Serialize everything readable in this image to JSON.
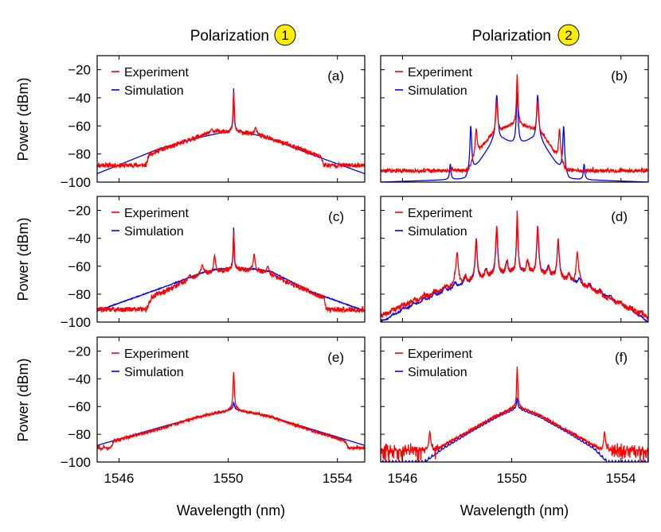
{
  "figure": {
    "column_titles": [
      {
        "text": "Polarization",
        "marker": "1",
        "marker_color": "#ffee00"
      },
      {
        "text": "Polarization",
        "marker": "2",
        "marker_color": "#ffee00"
      }
    ],
    "ylabel": "Power (dBm)",
    "xlabel": "Wavelength (nm)"
  },
  "colors": {
    "experiment": "#ff0000",
    "simulation": "#0000ff",
    "axes": "#000000"
  },
  "chart_data": [
    {
      "type": "line",
      "panel": "(a)",
      "column": 1,
      "row": 1,
      "xlim": [
        1545.2,
        1555.0
      ],
      "ylim": [
        -100,
        -10
      ],
      "xticks": [
        1546,
        1550,
        1554
      ],
      "yticks": [
        -20,
        -40,
        -60,
        -80,
        -100
      ],
      "legend": [
        "Experiment",
        "Simulation"
      ],
      "legend_position": "top-left",
      "series": [
        {
          "name": "Experiment",
          "floor": -95,
          "floor_noise": 5,
          "noise": 1.6,
          "seed": 11,
          "points": [
            [
              1545.2,
              -88
            ],
            [
              1547.0,
              -88
            ],
            [
              1547.1,
              -80
            ],
            [
              1548,
              -74
            ],
            [
              1549,
              -67
            ],
            [
              1549.6,
              -64
            ],
            [
              1550.2,
              -64
            ],
            [
              1551,
              -66
            ],
            [
              1552,
              -72
            ],
            [
              1553,
              -79
            ],
            [
              1553.4,
              -82
            ],
            [
              1553.5,
              -88
            ],
            [
              1555,
              -88
            ]
          ],
          "peaks": [
            [
              1550.2,
              -35,
              0.025
            ],
            [
              1549.4,
              -62,
              0.04
            ],
            [
              1551.0,
              -61,
              0.04
            ]
          ]
        },
        {
          "name": "Simulation",
          "floor": -200,
          "floor_noise": 0,
          "noise": 0,
          "seed": 1,
          "points": [
            [
              1545.2,
              -94
            ],
            [
              1547.5,
              -76
            ],
            [
              1549,
              -68
            ],
            [
              1550.2,
              -63
            ],
            [
              1551.4,
              -68
            ],
            [
              1553,
              -80
            ],
            [
              1555,
              -94
            ]
          ],
          "peaks": [
            [
              1550.2,
              -33,
              0.02
            ],
            [
              1547.7,
              -76,
              0.03
            ],
            [
              1548.7,
              -71,
              0.03
            ],
            [
              1551.7,
              -70,
              0.03
            ],
            [
              1552.6,
              -78,
              0.03
            ]
          ]
        }
      ]
    },
    {
      "type": "line",
      "panel": "(b)",
      "column": 2,
      "row": 1,
      "xlim": [
        1545.2,
        1555.0
      ],
      "ylim": [
        -100,
        -10
      ],
      "xticks": [
        1546,
        1550,
        1554
      ],
      "yticks": [
        -20,
        -40,
        -60,
        -80,
        -100
      ],
      "legend": [
        "Experiment",
        "Simulation"
      ],
      "legend_position": "top-left",
      "series": [
        {
          "name": "Experiment",
          "floor": -95,
          "floor_noise": 6,
          "noise": 1.2,
          "seed": 23,
          "points": [
            [
              1545.2,
              -92
            ],
            [
              1548.4,
              -92
            ],
            [
              1548.7,
              -80
            ],
            [
              1549.2,
              -68
            ],
            [
              1549.7,
              -62
            ],
            [
              1550.2,
              -58
            ],
            [
              1550.7,
              -62
            ],
            [
              1551.2,
              -68
            ],
            [
              1551.6,
              -80
            ],
            [
              1552,
              -92
            ],
            [
              1555,
              -92
            ]
          ],
          "peaks": [
            [
              1550.2,
              -23,
              0.03
            ],
            [
              1549.45,
              -42,
              0.04
            ],
            [
              1550.95,
              -42,
              0.04
            ],
            [
              1548.7,
              -62,
              0.04
            ],
            [
              1551.75,
              -62,
              0.04
            ]
          ]
        },
        {
          "name": "Simulation",
          "floor": -200,
          "floor_noise": 0,
          "noise": 0,
          "seed": 2,
          "points": [
            [
              1545.2,
              -100
            ],
            [
              1548.3,
              -98
            ],
            [
              1548.8,
              -86
            ],
            [
              1549.3,
              -72
            ],
            [
              1549.7,
              -70
            ],
            [
              1550.2,
              -74
            ],
            [
              1550.7,
              -70
            ],
            [
              1551.1,
              -72
            ],
            [
              1551.6,
              -86
            ],
            [
              1552.1,
              -98
            ],
            [
              1555,
              -100
            ]
          ],
          "peaks": [
            [
              1550.2,
              -36,
              0.04
            ],
            [
              1549.45,
              -38,
              0.05
            ],
            [
              1550.95,
              -38,
              0.05
            ],
            [
              1548.5,
              -60,
              0.04
            ],
            [
              1551.9,
              -60,
              0.04
            ],
            [
              1547.75,
              -87,
              0.03
            ],
            [
              1552.65,
              -87,
              0.03
            ]
          ]
        }
      ]
    },
    {
      "type": "line",
      "panel": "(c)",
      "column": 1,
      "row": 2,
      "xlim": [
        1545.2,
        1555.0
      ],
      "ylim": [
        -100,
        -10
      ],
      "xticks": [
        1546,
        1550,
        1554
      ],
      "yticks": [
        -20,
        -40,
        -60,
        -80,
        -100
      ],
      "legend": [
        "Experiment",
        "Simulation"
      ],
      "legend_position": "top-left",
      "series": [
        {
          "name": "Experiment",
          "floor": -95,
          "floor_noise": 6,
          "noise": 1.8,
          "seed": 37,
          "points": [
            [
              1545.2,
              -91
            ],
            [
              1547.0,
              -91
            ],
            [
              1547.2,
              -82
            ],
            [
              1548,
              -75
            ],
            [
              1549,
              -66
            ],
            [
              1550.2,
              -62
            ],
            [
              1551.2,
              -64
            ],
            [
              1552,
              -70
            ],
            [
              1553,
              -78
            ],
            [
              1553.5,
              -83
            ],
            [
              1553.6,
              -91
            ],
            [
              1555,
              -91
            ]
          ],
          "peaks": [
            [
              1550.2,
              -35,
              0.025
            ],
            [
              1549.5,
              -52,
              0.04
            ],
            [
              1550.95,
              -51,
              0.04
            ],
            [
              1549.05,
              -59,
              0.05
            ],
            [
              1551.45,
              -60,
              0.05
            ],
            [
              1548.6,
              -66,
              0.05
            ]
          ]
        },
        {
          "name": "Simulation",
          "floor": -200,
          "floor_noise": 0,
          "noise": 0.3,
          "seed": 3,
          "points": [
            [
              1545.2,
              -92
            ],
            [
              1547.5,
              -76
            ],
            [
              1549,
              -65
            ],
            [
              1549.6,
              -62
            ],
            [
              1551,
              -62
            ],
            [
              1551.6,
              -64
            ],
            [
              1553,
              -78
            ],
            [
              1555,
              -92
            ]
          ],
          "peaks": [
            [
              1550.2,
              -32,
              0.02
            ]
          ]
        }
      ]
    },
    {
      "type": "line",
      "panel": "(d)",
      "column": 2,
      "row": 2,
      "xlim": [
        1545.2,
        1555.0
      ],
      "ylim": [
        -100,
        -10
      ],
      "xticks": [
        1546,
        1550,
        1554
      ],
      "yticks": [
        -20,
        -40,
        -60,
        -80,
        -100
      ],
      "legend": [
        "Experiment",
        "Simulation"
      ],
      "legend_position": "top-left",
      "series": [
        {
          "name": "Experiment",
          "floor": -200,
          "floor_noise": 0,
          "noise": 1.8,
          "seed": 41,
          "points": [
            [
              1545.2,
              -96
            ],
            [
              1546,
              -88
            ],
            [
              1547,
              -80
            ],
            [
              1548,
              -72
            ],
            [
              1549,
              -66
            ],
            [
              1550.2,
              -60
            ],
            [
              1551.5,
              -65
            ],
            [
              1552.5,
              -72
            ],
            [
              1553.5,
              -82
            ],
            [
              1554.5,
              -92
            ],
            [
              1555,
              -96
            ]
          ],
          "comb": {
            "spacing": 0.38,
            "center": 1550.2,
            "amplitude": 9,
            "decay": 0.9
          },
          "peaks": [
            [
              1550.2,
              -20,
              0.025
            ],
            [
              1549.45,
              -31,
              0.04
            ],
            [
              1550.95,
              -31,
              0.04
            ],
            [
              1548.7,
              -40,
              0.04
            ],
            [
              1551.7,
              -40,
              0.04
            ],
            [
              1548.0,
              -50,
              0.05
            ],
            [
              1552.4,
              -50,
              0.05
            ]
          ]
        },
        {
          "name": "Simulation",
          "floor": -200,
          "floor_noise": 0,
          "noise": 0.5,
          "seed": 4,
          "points": [
            [
              1545.2,
              -100
            ],
            [
              1546,
              -91
            ],
            [
              1547,
              -82
            ],
            [
              1548,
              -73
            ],
            [
              1549,
              -66
            ],
            [
              1550.2,
              -61
            ],
            [
              1551.5,
              -64
            ],
            [
              1552.5,
              -71
            ],
            [
              1553.5,
              -81
            ],
            [
              1554.5,
              -93
            ],
            [
              1555,
              -100
            ]
          ],
          "comb": {
            "spacing": 0.38,
            "center": 1550.2,
            "amplitude": 9,
            "decay": 0.9
          },
          "peaks": [
            [
              1550.2,
              -28,
              0.03
            ],
            [
              1549.45,
              -34,
              0.04
            ],
            [
              1550.95,
              -34,
              0.04
            ],
            [
              1548.7,
              -42,
              0.04
            ],
            [
              1551.7,
              -42,
              0.04
            ]
          ]
        }
      ]
    },
    {
      "type": "line",
      "panel": "(e)",
      "column": 1,
      "row": 3,
      "xlim": [
        1545.2,
        1555.0
      ],
      "ylim": [
        -100,
        -10
      ],
      "xticks": [
        1546,
        1550,
        1554
      ],
      "yticks": [
        -20,
        -40,
        -60,
        -80,
        -100
      ],
      "legend": [
        "Experiment",
        "Simulation"
      ],
      "legend_position": "top-left",
      "series": [
        {
          "name": "Experiment",
          "floor": -93,
          "floor_noise": 7,
          "noise": 1.0,
          "seed": 53,
          "points": [
            [
              1545.2,
              -90
            ],
            [
              1545.7,
              -90
            ],
            [
              1545.8,
              -85
            ],
            [
              1547.5,
              -76
            ],
            [
              1549,
              -67
            ],
            [
              1550.2,
              -62
            ],
            [
              1551.5,
              -67
            ],
            [
              1553,
              -77
            ],
            [
              1554.3,
              -85
            ],
            [
              1554.4,
              -90
            ],
            [
              1555,
              -90
            ]
          ],
          "peaks": [
            [
              1550.2,
              -35,
              0.03
            ]
          ]
        },
        {
          "name": "Simulation",
          "floor": -200,
          "floor_noise": 0,
          "noise": 0,
          "seed": 5,
          "points": [
            [
              1545.2,
              -88
            ],
            [
              1547.5,
              -75
            ],
            [
              1549,
              -67
            ],
            [
              1550.2,
              -62
            ],
            [
              1551.5,
              -67
            ],
            [
              1553,
              -76
            ],
            [
              1555,
              -88
            ]
          ],
          "peaks": [
            [
              1550.2,
              -57,
              0.03
            ]
          ]
        }
      ]
    },
    {
      "type": "line",
      "panel": "(f)",
      "column": 2,
      "row": 3,
      "xlim": [
        1545.2,
        1555.0
      ],
      "ylim": [
        -100,
        -10
      ],
      "xticks": [
        1546,
        1550,
        1554
      ],
      "yticks": [
        -20,
        -40,
        -60,
        -80,
        -100
      ],
      "legend": [
        "Experiment",
        "Simulation"
      ],
      "legend_position": "top-left",
      "series": [
        {
          "name": "Experiment",
          "floor": -92,
          "floor_noise": 6,
          "noise": 1.0,
          "seed": 61,
          "points": [
            [
              1545.2,
              -92
            ],
            [
              1547.2,
              -92
            ],
            [
              1547.5,
              -88
            ],
            [
              1548.5,
              -77
            ],
            [
              1549.5,
              -66
            ],
            [
              1550.2,
              -60
            ],
            [
              1551,
              -66
            ],
            [
              1552,
              -77
            ],
            [
              1553,
              -88
            ],
            [
              1553.3,
              -92
            ],
            [
              1555,
              -92
            ]
          ],
          "peaks": [
            [
              1550.2,
              -31,
              0.025
            ],
            [
              1547.0,
              -78,
              0.04
            ],
            [
              1553.4,
              -78,
              0.04
            ]
          ]
        },
        {
          "name": "Simulation",
          "floor": -200,
          "floor_noise": 0,
          "noise": 0,
          "seed": 6,
          "points": [
            [
              1545.2,
              -100
            ],
            [
              1546.8,
              -100
            ],
            [
              1547.5,
              -90
            ],
            [
              1548.5,
              -78
            ],
            [
              1549.5,
              -67
            ],
            [
              1550.2,
              -61
            ],
            [
              1551,
              -67
            ],
            [
              1552,
              -78
            ],
            [
              1553,
              -90
            ],
            [
              1553.5,
              -100
            ],
            [
              1555,
              -100
            ]
          ],
          "comb": {
            "spacing": 0.12,
            "center": 1550.2,
            "amplitude": 1.6,
            "decay": 0
          },
          "peaks": [
            [
              1550.2,
              -54,
              0.03
            ]
          ]
        }
      ]
    }
  ]
}
